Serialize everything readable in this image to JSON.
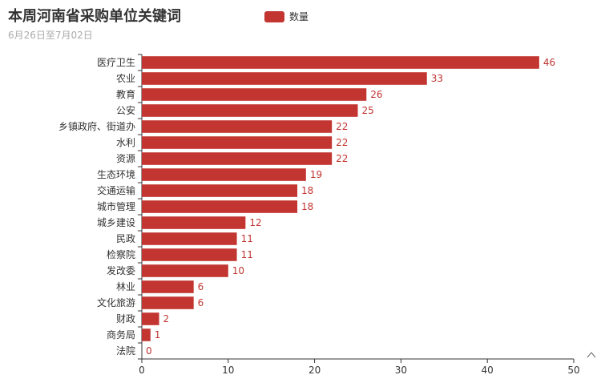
{
  "title": "本周河南省采购单位关键词",
  "subtitle": "6月26日至7月02日",
  "legend": {
    "label": "数量",
    "color": "#c23531"
  },
  "colors": {
    "bar": "#c23531",
    "axis": "#333333",
    "text": "#333333",
    "title": "#333333",
    "subtitle": "#aaaaaa"
  },
  "chart_data": {
    "type": "bar",
    "orientation": "horizontal",
    "categories": [
      "医疗卫生",
      "农业",
      "教育",
      "公安",
      "乡镇政府、街道办",
      "水利",
      "资源",
      "生态环境",
      "交通运输",
      "城市管理",
      "城乡建设",
      "民政",
      "检察院",
      "发改委",
      "林业",
      "文化旅游",
      "财政",
      "商务局",
      "法院"
    ],
    "series": [
      {
        "name": "数量",
        "values": [
          46,
          33,
          26,
          25,
          22,
          22,
          22,
          19,
          18,
          18,
          12,
          11,
          11,
          10,
          6,
          6,
          2,
          1,
          0
        ]
      }
    ],
    "xlim": [
      0,
      50
    ],
    "xticks": [
      0,
      10,
      20,
      30,
      40,
      50
    ],
    "data_labels": true,
    "grid": false,
    "legend_position": "top"
  }
}
